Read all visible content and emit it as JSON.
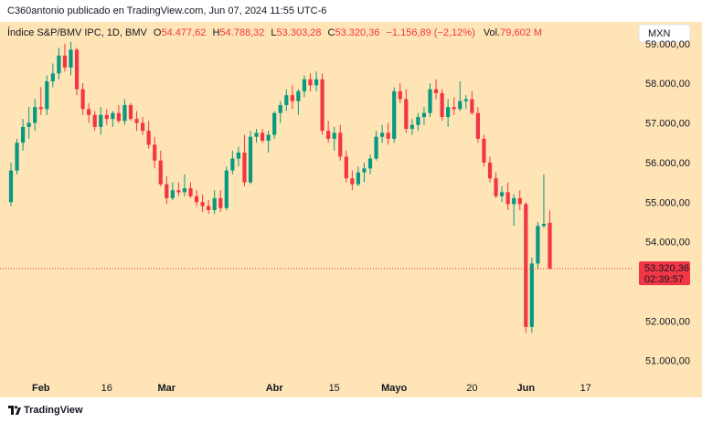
{
  "header": {
    "publisher_text": "C360antonio publicado en TradingView.com, Jun 07, 2024 11:55 UTC-6"
  },
  "footer": {
    "brand": "TradingView",
    "logo_icon": "tradingview-logo-icon"
  },
  "colors": {
    "background": "#ffe4b5",
    "up": "#089981",
    "down": "#f23645",
    "text": "#131722"
  },
  "chart_data": {
    "type": "candlestick",
    "title": "Índice S&P/BMV IPC, 1D, BMV",
    "currency": "MXN",
    "legend": {
      "symbol": "Índice S&P/BMV IPC, 1D, BMV",
      "open_label": "O",
      "open": "54.477,62",
      "high_label": "H",
      "high": "54.788,32",
      "low_label": "L",
      "low": "53.303,28",
      "close_label": "C",
      "close": "53.320,36",
      "change": "−1.156,89 (−2,12%)",
      "volume_label": "Vol.",
      "volume": "79,602 M"
    },
    "last_price": "53.320,36",
    "last_price_value": 53320.36,
    "countdown": "02:39:57",
    "ylim": [
      50600,
      59550
    ],
    "y_ticks": [
      {
        "value": 59000,
        "label": "59.000,00"
      },
      {
        "value": 58000,
        "label": "58.000,00"
      },
      {
        "value": 57000,
        "label": "57.000,00"
      },
      {
        "value": 56000,
        "label": "56.000,00"
      },
      {
        "value": 55000,
        "label": "55.000,00"
      },
      {
        "value": 54000,
        "label": "54.000,00"
      },
      {
        "value": 52000,
        "label": "52.000,00"
      },
      {
        "value": 51000,
        "label": "51.000,00"
      }
    ],
    "x_ticks": [
      {
        "index": 5,
        "label": "Feb",
        "bold": true
      },
      {
        "index": 16,
        "label": "16",
        "bold": false
      },
      {
        "index": 26,
        "label": "Mar",
        "bold": true
      },
      {
        "index": 44,
        "label": "Abr",
        "bold": true
      },
      {
        "index": 54,
        "label": "15",
        "bold": false
      },
      {
        "index": 64,
        "label": "Mayo",
        "bold": true
      },
      {
        "index": 77,
        "label": "20",
        "bold": false
      },
      {
        "index": 86,
        "label": "Jun",
        "bold": true
      },
      {
        "index": 96,
        "label": "17",
        "bold": false
      }
    ],
    "candles": [
      [
        55000,
        56000,
        54900,
        55800
      ],
      [
        55800,
        56600,
        55700,
        56500
      ],
      [
        56500,
        57100,
        56300,
        56900
      ],
      [
        56900,
        57400,
        56600,
        57000
      ],
      [
        57000,
        57600,
        56800,
        57400
      ],
      [
        57400,
        57900,
        57200,
        57350
      ],
      [
        57350,
        58200,
        57200,
        58050
      ],
      [
        58050,
        58500,
        57900,
        58250
      ],
      [
        58250,
        58900,
        58100,
        58700
      ],
      [
        58700,
        59000,
        58300,
        58400
      ],
      [
        58400,
        59050,
        58200,
        58850
      ],
      [
        58850,
        58900,
        57700,
        57850
      ],
      [
        57850,
        58000,
        57200,
        57350
      ],
      [
        57350,
        57500,
        57000,
        57200
      ],
      [
        57200,
        57300,
        56800,
        56900
      ],
      [
        56900,
        57400,
        56700,
        57200
      ],
      [
        57200,
        57350,
        56950,
        57100
      ],
      [
        57100,
        57300,
        56900,
        57250
      ],
      [
        57250,
        57450,
        57000,
        57050
      ],
      [
        57050,
        57600,
        56950,
        57450
      ],
      [
        57450,
        57500,
        57050,
        57100
      ],
      [
        57100,
        57300,
        56800,
        57000
      ],
      [
        57000,
        57150,
        56700,
        56800
      ],
      [
        56800,
        57050,
        56350,
        56450
      ],
      [
        56450,
        56650,
        55850,
        56050
      ],
      [
        56050,
        56300,
        55400,
        55450
      ],
      [
        55450,
        55650,
        54950,
        55100
      ],
      [
        55100,
        55500,
        55050,
        55300
      ],
      [
        55300,
        55500,
        55150,
        55250
      ],
      [
        55250,
        55700,
        55150,
        55350
      ],
      [
        55350,
        55500,
        55100,
        55150
      ],
      [
        55150,
        55300,
        54900,
        55000
      ],
      [
        55000,
        55200,
        54750,
        54900
      ],
      [
        54900,
        55050,
        54700,
        54800
      ],
      [
        54800,
        55300,
        54700,
        55100
      ],
      [
        55100,
        55300,
        54750,
        54850
      ],
      [
        54850,
        55900,
        54800,
        55800
      ],
      [
        55800,
        56300,
        55700,
        56100
      ],
      [
        56100,
        56400,
        55900,
        56250
      ],
      [
        56250,
        56700,
        55400,
        55500
      ],
      [
        55500,
        56800,
        55450,
        56650
      ],
      [
        56650,
        56850,
        56500,
        56750
      ],
      [
        56750,
        56850,
        56500,
        56550
      ],
      [
        56550,
        56800,
        56250,
        56700
      ],
      [
        56700,
        57300,
        56600,
        57250
      ],
      [
        57250,
        57550,
        57000,
        57450
      ],
      [
        57450,
        57850,
        57300,
        57700
      ],
      [
        57700,
        57950,
        57350,
        57550
      ],
      [
        57550,
        57850,
        57200,
        57800
      ],
      [
        57800,
        58200,
        57650,
        58100
      ],
      [
        58100,
        58250,
        57800,
        57950
      ],
      [
        57950,
        58300,
        57800,
        58100
      ],
      [
        58100,
        58250,
        56700,
        56800
      ],
      [
        56800,
        57050,
        56500,
        56600
      ],
      [
        56600,
        56900,
        56300,
        56750
      ],
      [
        56750,
        56950,
        56050,
        56150
      ],
      [
        56150,
        56300,
        55500,
        55600
      ],
      [
        55600,
        55800,
        55300,
        55450
      ],
      [
        55450,
        55900,
        55400,
        55750
      ],
      [
        55750,
        56000,
        55500,
        55850
      ],
      [
        55850,
        56200,
        55700,
        56100
      ],
      [
        56100,
        56800,
        56050,
        56650
      ],
      [
        56650,
        56950,
        56500,
        56750
      ],
      [
        56750,
        57000,
        56450,
        56600
      ],
      [
        56600,
        57900,
        56500,
        57800
      ],
      [
        57800,
        58000,
        57500,
        57600
      ],
      [
        57600,
        57850,
        56750,
        56850
      ],
      [
        56850,
        57100,
        56700,
        56950
      ],
      [
        56950,
        57250,
        56800,
        57150
      ],
      [
        57150,
        57400,
        56950,
        57250
      ],
      [
        57250,
        58000,
        57150,
        57850
      ],
      [
        57850,
        58100,
        57600,
        57750
      ],
      [
        57750,
        57850,
        57050,
        57150
      ],
      [
        57150,
        57600,
        56900,
        57400
      ],
      [
        57400,
        57650,
        57200,
        57350
      ],
      [
        57350,
        58050,
        57300,
        57550
      ],
      [
        57550,
        57700,
        57350,
        57600
      ],
      [
        57600,
        57800,
        57200,
        57250
      ],
      [
        57250,
        57400,
        56500,
        56600
      ],
      [
        56600,
        56700,
        55900,
        56000
      ],
      [
        56000,
        56150,
        55500,
        55600
      ],
      [
        55600,
        55750,
        55100,
        55150
      ],
      [
        55150,
        55400,
        55000,
        55250
      ],
      [
        55250,
        55500,
        54800,
        54950
      ],
      [
        54950,
        55200,
        54400,
        55100
      ],
      [
        55100,
        55300,
        54800,
        54950
      ],
      [
        54950,
        55000,
        51700,
        51850
      ],
      [
        51850,
        53600,
        51700,
        53450
      ],
      [
        53450,
        54500,
        53300,
        54400
      ],
      [
        54400,
        55700,
        54350,
        54450
      ],
      [
        54477.62,
        54788.32,
        53303.28,
        53320.36
      ]
    ]
  }
}
